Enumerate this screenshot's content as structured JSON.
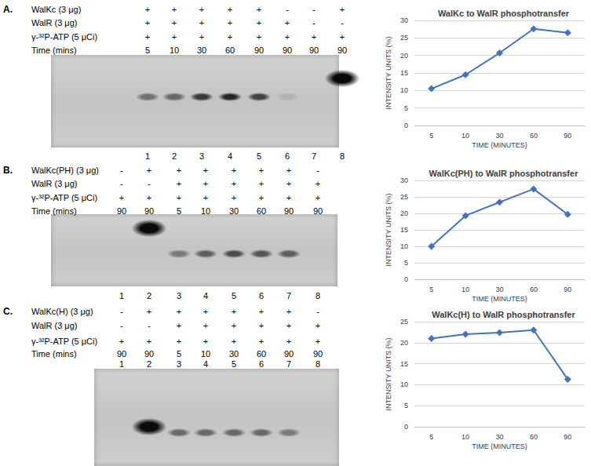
{
  "chart_data": [
    {
      "type": "line",
      "title": "WalKc to WalR phosphotransfer",
      "x_label": "TIME (MINUTES)",
      "y_label": "INTENSITY UNITS (%)",
      "categories": [
        "5",
        "10",
        "30",
        "60",
        "90"
      ],
      "values": [
        10.5,
        14.5,
        20.7,
        27.6,
        26.5
      ],
      "color": "#4472c4",
      "marker": "diamond",
      "ylim": [
        0,
        30
      ],
      "yticks": [
        0,
        5,
        10,
        15,
        20,
        25,
        30
      ],
      "grid": true
    },
    {
      "type": "line",
      "title": "WalKc(PH) to WalR phosphotransfer",
      "x_label": "TIME (MINUTES)",
      "y_label": "INTENSITY UNITS (%)",
      "categories": [
        "5",
        "10",
        "30",
        "60",
        "90"
      ],
      "values": [
        10,
        19.3,
        23.4,
        27.4,
        19.7
      ],
      "color": "#4472c4",
      "marker": "diamond",
      "ylim": [
        0,
        30
      ],
      "yticks": [
        0,
        5,
        10,
        15,
        20,
        25,
        30
      ],
      "grid": true
    },
    {
      "type": "line",
      "title": "WalKc(H) to WalR phosphotransfer",
      "x_label": "TIME (MINUTES)",
      "y_label": "INTENSITY UNITS (%)",
      "categories": [
        "5",
        "10",
        "30",
        "60",
        "90"
      ],
      "values": [
        21,
        22,
        22.4,
        23,
        11.3
      ],
      "color": "#4472c4",
      "marker": "diamond",
      "ylim": [
        0,
        25
      ],
      "yticks": [
        0,
        5,
        10,
        15,
        20,
        25
      ],
      "grid": true
    }
  ],
  "gels": [
    {
      "label": "A.",
      "rows": [
        {
          "name": "WalKc (3 μg)",
          "marks": [
            "+",
            "+",
            "+",
            "+",
            "+",
            "-",
            "-",
            "+"
          ]
        },
        {
          "name": "WalR (3 μg)",
          "marks": [
            "+",
            "+",
            "+",
            "+",
            "+",
            "+",
            "-",
            "-"
          ]
        },
        {
          "name": "γ-³²P-ATP (5 μCi)",
          "marks": [
            "+",
            "+",
            "+",
            "+",
            "+",
            "+",
            "+",
            "+"
          ]
        }
      ],
      "time": {
        "name": "Time (mins)",
        "values": [
          5,
          10,
          30,
          60,
          90,
          90,
          90,
          90
        ]
      },
      "lanes": [
        1,
        2,
        3,
        4,
        5,
        6,
        7,
        8
      ],
      "bands": [
        {
          "lane": 1,
          "position": "lower",
          "intensity": 0.45
        },
        {
          "lane": 2,
          "position": "lower",
          "intensity": 0.5
        },
        {
          "lane": 3,
          "position": "lower",
          "intensity": 0.75
        },
        {
          "lane": 4,
          "position": "lower",
          "intensity": 0.85
        },
        {
          "lane": 5,
          "position": "lower",
          "intensity": 0.7
        },
        {
          "lane": 6,
          "position": "lower",
          "intensity": 0.1
        },
        {
          "lane": 8,
          "position": "upper",
          "intensity": 1
        }
      ]
    },
    {
      "label": "B.",
      "rows": [
        {
          "name": "WalKc(PH) (3 μg)",
          "marks": [
            "-",
            "+",
            "+",
            "+",
            "+",
            "+",
            "+",
            "-"
          ]
        },
        {
          "name": "WalR (3 μg)",
          "marks": [
            "-",
            "-",
            "+",
            "+",
            "+",
            "+",
            "+",
            "+"
          ]
        },
        {
          "name": "γ-³²P-ATP (5 μCi)",
          "marks": [
            "+",
            "+",
            "+",
            "+",
            "+",
            "+",
            "+",
            "+"
          ]
        }
      ],
      "time": {
        "name": "Time (mins)",
        "values": [
          90,
          90,
          5,
          10,
          30,
          60,
          90,
          90
        ]
      },
      "lanes": [
        1,
        2,
        3,
        4,
        5,
        6,
        7,
        8
      ],
      "bands": [
        {
          "lane": 2,
          "position": "upper",
          "intensity": 1
        },
        {
          "lane": 3,
          "position": "lower",
          "intensity": 0.4
        },
        {
          "lane": 4,
          "position": "lower",
          "intensity": 0.55
        },
        {
          "lane": 5,
          "position": "lower",
          "intensity": 0.65
        },
        {
          "lane": 6,
          "position": "lower",
          "intensity": 0.6
        },
        {
          "lane": 7,
          "position": "lower",
          "intensity": 0.55
        }
      ]
    },
    {
      "label": "C.",
      "rows": [
        {
          "name": "WalKc(H) (3 μg)",
          "marks": [
            "-",
            "+",
            "+",
            "+",
            "+",
            "+",
            "+",
            "-"
          ]
        },
        {
          "name": "WalR (3 μg)",
          "marks": [
            "-",
            "-",
            "+",
            "+",
            "+",
            "+",
            "+",
            "+"
          ]
        },
        {
          "name": "γ-³²P-ATP (5 μCi)",
          "marks": [
            "+",
            "+",
            "+",
            "+",
            "+",
            "+",
            "+",
            "+"
          ]
        }
      ],
      "time": {
        "name": "Time (mins)",
        "values": [
          90,
          90,
          5,
          10,
          30,
          60,
          90,
          90
        ]
      },
      "lanes": [
        1,
        2,
        3,
        4,
        5,
        6,
        7,
        8
      ],
      "bands": [
        {
          "lane": 2,
          "position": "upper",
          "intensity": 1
        },
        {
          "lane": 3,
          "position": "lower",
          "intensity": 0.5
        },
        {
          "lane": 4,
          "position": "lower",
          "intensity": 0.5
        },
        {
          "lane": 5,
          "position": "lower",
          "intensity": 0.5
        },
        {
          "lane": 6,
          "position": "lower",
          "intensity": 0.5
        },
        {
          "lane": 7,
          "position": "lower",
          "intensity": 0.4
        }
      ]
    }
  ]
}
